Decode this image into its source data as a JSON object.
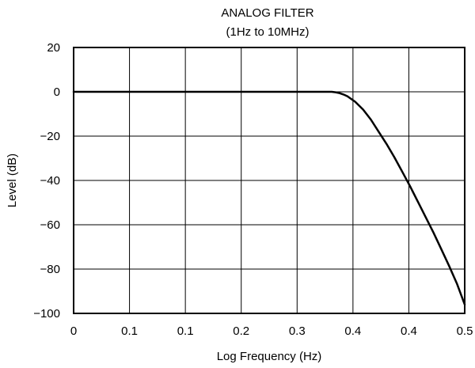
{
  "chart_data": {
    "type": "line",
    "title": "ANALOG FILTER",
    "subtitle": "(1Hz to 10MHz)",
    "xlabel": "Log Frequency (Hz)",
    "ylabel": "Level (dB)",
    "x_tick_labels": [
      "0",
      "0.1",
      "0.1",
      "0.2",
      "0.3",
      "0.4",
      "0.4",
      "0.5"
    ],
    "y_tick_labels": [
      "20",
      "0",
      "−20",
      "−40",
      "−60",
      "−80",
      "−100"
    ],
    "xlim": [
      0,
      0.5
    ],
    "ylim": [
      -100,
      20
    ],
    "grid": true,
    "legend": "none",
    "line_color": "#000000",
    "series": [
      {
        "x": [
          0,
          0.1,
          0.2,
          0.3,
          0.32,
          0.33,
          0.335,
          0.34,
          0.345,
          0.35,
          0.36,
          0.37,
          0.38,
          0.39,
          0.4,
          0.41,
          0.42,
          0.43,
          0.44,
          0.45,
          0.46,
          0.47,
          0.48,
          0.49,
          0.5
        ],
        "y": [
          0,
          0,
          0,
          0,
          0,
          0,
          -0.2,
          -0.6,
          -1.2,
          -2,
          -4.5,
          -8,
          -12.5,
          -18,
          -23.5,
          -29.5,
          -36,
          -42.5,
          -49.5,
          -56.5,
          -63.5,
          -71,
          -78.5,
          -86.5,
          -96
        ]
      }
    ]
  }
}
